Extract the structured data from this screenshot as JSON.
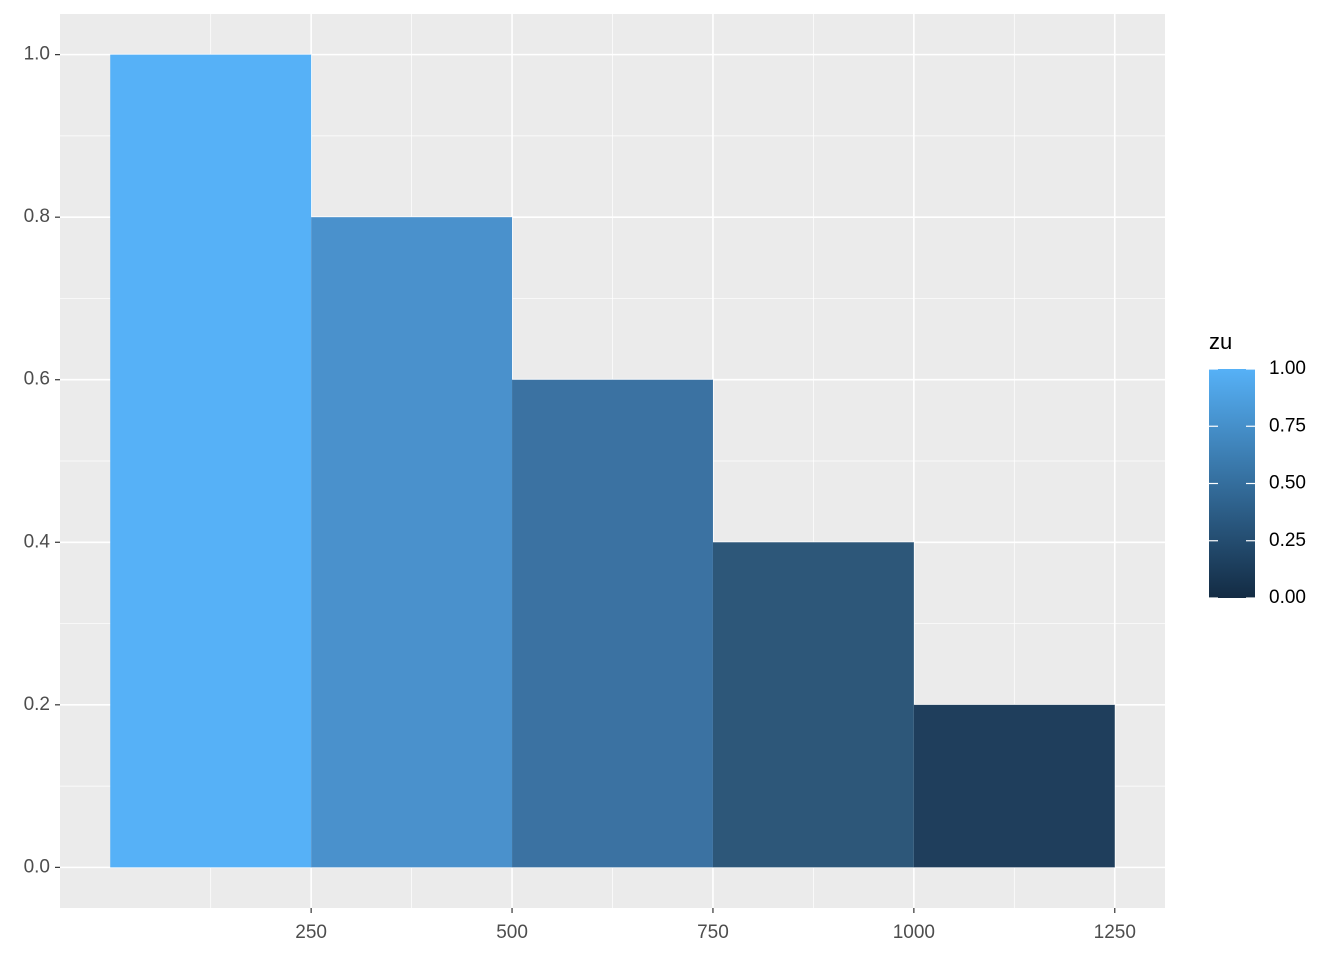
{
  "chart_data": {
    "type": "histogram",
    "bins": [
      0,
      250,
      500,
      750,
      1000,
      1250
    ],
    "values": [
      1.0,
      0.8,
      0.6,
      0.4,
      0.2
    ],
    "colors": [
      "#56B1F7",
      "#4A91CC",
      "#3B72A2",
      "#2D5779",
      "#1F3E5C"
    ],
    "xlim": [
      -62.5,
      1312.5
    ],
    "ylim": [
      -0.05,
      1.05
    ],
    "xticks": [
      250,
      500,
      750,
      1000,
      1250
    ],
    "yticks": [
      {
        "value": 0,
        "label": "0.0"
      },
      {
        "value": 0.2,
        "label": "0.2"
      },
      {
        "value": 0.4,
        "label": "0.4"
      },
      {
        "value": 0.6,
        "label": "0.6"
      },
      {
        "value": 0.8,
        "label": "0.8"
      },
      {
        "value": 1,
        "label": "1.0"
      }
    ],
    "grid": true,
    "colorbar": {
      "title": "zu",
      "low": "#132B43",
      "high": "#56B1F7",
      "lim": [
        0,
        1
      ],
      "ticks": [
        {
          "value": 0,
          "label": "0.00"
        },
        {
          "value": 0.25,
          "label": "0.25"
        },
        {
          "value": 0.5,
          "label": "0.50"
        },
        {
          "value": 0.75,
          "label": "0.75"
        },
        {
          "value": 1,
          "label": "1.00"
        }
      ]
    }
  }
}
